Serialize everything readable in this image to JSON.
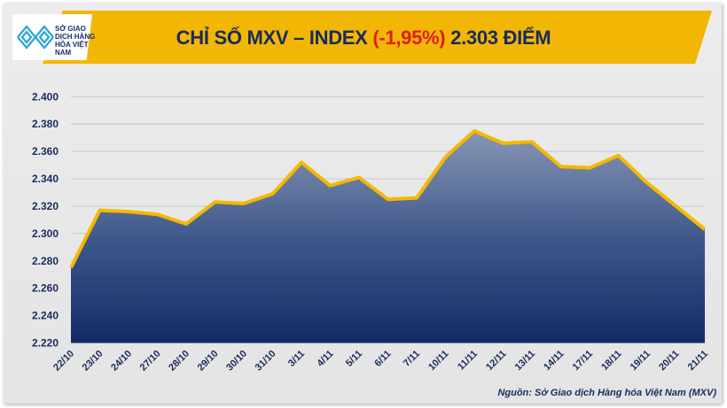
{
  "header": {
    "logo_text": "SỞ GIAO DỊCH HÀNG HÓA VIỆT NAM",
    "title_prefix": "CHỈ SỐ MXV – INDEX",
    "title_change": "(-1,95%)",
    "title_suffix": "2.303 ĐIỂM"
  },
  "source": "Nguồn: Sở Giao dịch Hàng hóa Việt Nam (MXV)",
  "colors": {
    "banner": "#f2b705",
    "line": "#f5b800",
    "area_top": "#7a8bac",
    "area_bottom": "#142a66",
    "text": "#1a2a5e",
    "negative": "#e11b1b"
  },
  "chart_data": {
    "type": "area",
    "title": "CHỈ SỐ MXV – INDEX (-1,95%) 2.303 ĐIỂM",
    "categories": [
      "22/10",
      "23/10",
      "24/10",
      "27/10",
      "28/10",
      "29/10",
      "30/10",
      "31/10",
      "3/11",
      "4/11",
      "5/11",
      "6/11",
      "7/11",
      "10/11",
      "11/11",
      "12/11",
      "13/11",
      "14/11",
      "17/11",
      "18/11",
      "19/11",
      "20/11",
      "21/11"
    ],
    "values": [
      2275,
      2317,
      2316,
      2314,
      2307,
      2323,
      2322,
      2329,
      2352,
      2335,
      2341,
      2325,
      2326,
      2356,
      2375,
      2366,
      2367,
      2349,
      2348,
      2357,
      2337,
      2320,
      2303
    ],
    "yticks": [
      "2.220",
      "2.240",
      "2.260",
      "2.280",
      "2.300",
      "2.320",
      "2.340",
      "2.360",
      "2.380",
      "2.400"
    ],
    "ylim": [
      2220,
      2400
    ],
    "grid": true,
    "legend": "none"
  }
}
